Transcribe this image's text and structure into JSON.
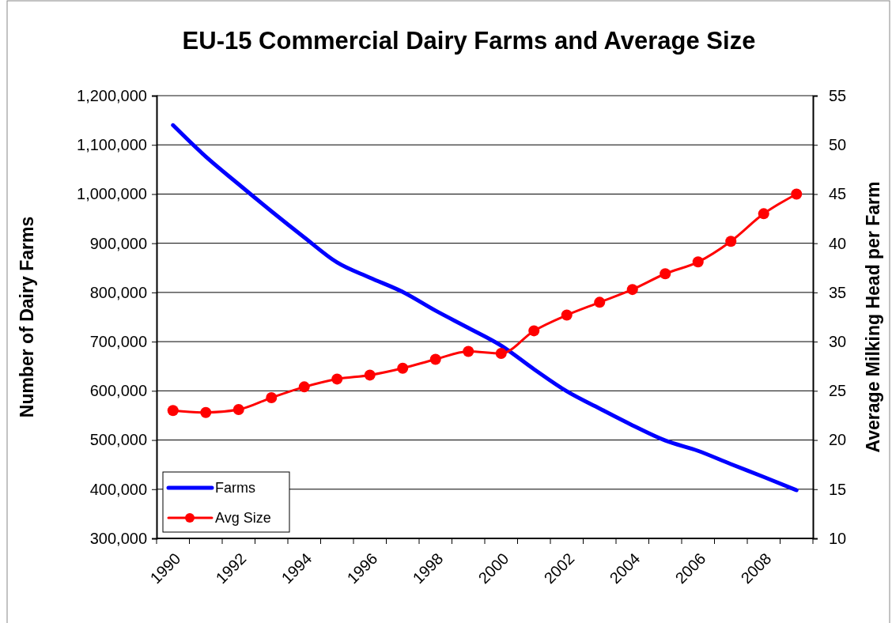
{
  "chart_data": {
    "type": "line",
    "title": "EU-15 Commercial Dairy Farms and Average Size",
    "ylabel": "Number of Dairy Farms",
    "y2label": "Average Milking Head per Farm",
    "categories": [
      "1990",
      null,
      "1992",
      null,
      "1994",
      null,
      "1996",
      null,
      "1998",
      null,
      "2000",
      null,
      "2002",
      null,
      "2004",
      null,
      "2006",
      null,
      "2008",
      null
    ],
    "series": [
      {
        "name": "Farms",
        "color": "#0000ff",
        "marker": "none",
        "values": [
          1140000,
          1076000,
          1020000,
          965000,
          912000,
          861000,
          830000,
          801000,
          763000,
          728000,
          692000,
          644000,
          599000,
          564000,
          530000,
          499000,
          478000,
          451000,
          425000,
          398000
        ]
      },
      {
        "name": "Avg Size",
        "color": "#ff0000",
        "marker": "circle",
        "axis": "y2",
        "values": [
          23.0,
          22.8,
          23.1,
          24.3,
          25.4,
          26.2,
          26.6,
          27.3,
          28.2,
          29.0,
          28.8,
          31.1,
          32.7,
          34.0,
          35.3,
          36.9,
          38.1,
          40.2,
          43.0,
          45.0
        ]
      }
    ],
    "ylim": [
      300000,
      1200000
    ],
    "yticks": [
      {
        "value": 300000,
        "label": "300,000"
      },
      {
        "value": 400000,
        "label": "400,000"
      },
      {
        "value": 500000,
        "label": "500,000"
      },
      {
        "value": 600000,
        "label": "600,000"
      },
      {
        "value": 700000,
        "label": "700,000"
      },
      {
        "value": 800000,
        "label": "800,000"
      },
      {
        "value": 900000,
        "label": "900,000"
      },
      {
        "value": 1000000,
        "label": "1,000,000"
      },
      {
        "value": 1100000,
        "label": "1,100,000"
      },
      {
        "value": 1200000,
        "label": "1,200,000"
      }
    ],
    "y2lim": [
      10,
      55
    ],
    "y2ticks": [
      10,
      15,
      20,
      25,
      30,
      35,
      40,
      45,
      50,
      55
    ],
    "grid": "y",
    "legend": "bottom left",
    "line_style": "solid"
  }
}
